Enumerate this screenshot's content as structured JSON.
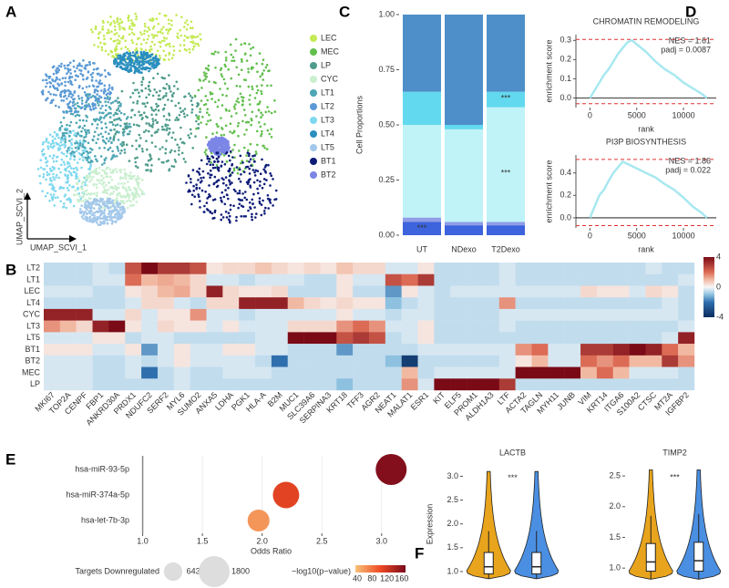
{
  "panel_labels": [
    "A",
    "B",
    "C",
    "D",
    "E",
    "F"
  ],
  "chart_data": [
    {
      "type": "umap",
      "xlabel": "UMAP_SCVI_1",
      "ylabel": "UMAP_SCVI_2",
      "series": [
        {
          "name": "LEC",
          "color": "#c5ea55"
        },
        {
          "name": "MEC",
          "color": "#62bf4e"
        },
        {
          "name": "LP",
          "color": "#4f9c8c"
        },
        {
          "name": "CYC",
          "color": "#c9efcf"
        },
        {
          "name": "LT1",
          "color": "#4fa6b4"
        },
        {
          "name": "LT2",
          "color": "#5b9ad6"
        },
        {
          "name": "LT3",
          "color": "#7fd8ef"
        },
        {
          "name": "LT4",
          "color": "#2a8fbf"
        },
        {
          "name": "LT5",
          "color": "#a3c8ea"
        },
        {
          "name": "BT1",
          "color": "#0e1c78"
        },
        {
          "name": "BT2",
          "color": "#7b86e6"
        }
      ]
    },
    {
      "type": "bar",
      "stacked": true,
      "ylabel": "Cell Proportions",
      "categories": [
        "UT",
        "NDexo",
        "T2Dexo"
      ],
      "series": [
        {
          "color": "#3d63dd",
          "values": [
            0.06,
            0.045,
            0.045
          ]
        },
        {
          "color": "#8f9ce6",
          "values": [
            0.02,
            0.015,
            0.015
          ]
        },
        {
          "color": "#bff3f7",
          "values": [
            0.42,
            0.42,
            0.52
          ]
        },
        {
          "color": "#62d9ee",
          "values": [
            0.15,
            0.02,
            0.07
          ]
        },
        {
          "color": "#4e8fca",
          "values": [
            0.35,
            0.5,
            0.35
          ]
        }
      ],
      "ylim": [
        0,
        1
      ],
      "yticks": [
        {
          "value": 0,
          "label": "0.00"
        },
        {
          "value": 0.25,
          "label": "0.25"
        },
        {
          "value": 0.5,
          "label": "0.50"
        },
        {
          "value": 0.75,
          "label": "0.75"
        },
        {
          "value": 1,
          "label": "1.00"
        }
      ],
      "annotations": [
        {
          "text": "***",
          "color": "#e02424"
        },
        {
          "text": "***",
          "color": "#e02424"
        },
        {
          "text": "***",
          "color": "#2540d8"
        }
      ]
    },
    {
      "type": "line",
      "title": "CHROMATIN REMODELING",
      "xlabel": "rank",
      "ylabel": "enrichment score",
      "color": "#a8e8f0",
      "x": [
        0,
        500,
        1000,
        1500,
        2000,
        2500,
        3000,
        3500,
        4000,
        4500,
        5000,
        6000,
        7000,
        8000,
        9000,
        10000,
        11000,
        12000,
        12500
      ],
      "y": [
        0,
        0.04,
        0.08,
        0.12,
        0.15,
        0.19,
        0.23,
        0.26,
        0.29,
        0.3,
        0.28,
        0.24,
        0.19,
        0.15,
        0.12,
        0.08,
        0.05,
        0.02,
        0
      ],
      "xlim": [
        -1500,
        13500
      ],
      "xticks": [
        0,
        5000,
        10000
      ],
      "ylim": [
        -0.05,
        0.33
      ],
      "yticks": [
        {
          "value": 0,
          "label": "0.0"
        },
        0.1,
        0.2,
        0.3
      ],
      "ref_lines": [
        0.305,
        -0.03
      ],
      "annotations": [
        "NES = 1.61",
        "padj = 0.0087"
      ]
    },
    {
      "type": "line",
      "title": "PI3P BIOSYNTHESIS",
      "xlabel": "rank",
      "ylabel": "enrichment score",
      "color": "#a8e8f0",
      "x": [
        0,
        500,
        1000,
        1500,
        2000,
        2500,
        3000,
        3500,
        4000,
        4500,
        5000,
        6000,
        7000,
        8000,
        9000,
        10000,
        11000,
        12000,
        12500
      ],
      "y": [
        0,
        0.1,
        0.2,
        0.25,
        0.33,
        0.4,
        0.45,
        0.5,
        0.48,
        0.46,
        0.44,
        0.4,
        0.36,
        0.3,
        0.25,
        0.18,
        0.1,
        0.04,
        0
      ],
      "xlim": [
        -1500,
        13500
      ],
      "xticks": [
        0,
        5000,
        10000
      ],
      "ylim": [
        -0.09,
        0.56
      ],
      "yticks": [
        {
          "value": 0,
          "label": "0.0"
        },
        0.2,
        0.4
      ],
      "ref_lines": [
        0.52,
        -0.07
      ],
      "annotations": [
        "NES = 1.86",
        "padj = 0.022"
      ]
    },
    {
      "type": "heatmap",
      "rows": [
        "LT2",
        "LT1",
        "LEC",
        "LT4",
        "CYC",
        "LT3",
        "LT5",
        "BT1",
        "BT2",
        "MEC",
        "LP"
      ],
      "columns": [
        "MKI67",
        "TOP2A",
        "CENPF",
        "FBP1",
        "ANKRD30A",
        "PRDX1",
        "NDUFC2",
        "SERF2",
        "MYL6",
        "SUMO2",
        "ANXA5",
        "LDHA",
        "PGK1",
        "HLA-A",
        "B2M",
        "MUC1",
        "SLC39A6",
        "SERPINA3",
        "KRT18",
        "TFF3",
        "AGR2",
        "NEAT1",
        "MALAT1",
        "ESR1",
        "KIT",
        "ELF5",
        "PROM1",
        "ALDH1A3",
        "LTF",
        "ACTA2",
        "TAGLN",
        "MYH11",
        "JUNB",
        "VIM",
        "KRT14",
        "ITGA6",
        "S100A2",
        "CTSC",
        "MT2A",
        "IGFBP2"
      ],
      "values": [
        [
          -0.5,
          -0.5,
          -0.5,
          -0.3,
          -0.5,
          2.5,
          4,
          3,
          3,
          2.5,
          0.3,
          0.5,
          0.5,
          0.8,
          0.5,
          0.3,
          0.5,
          0.3,
          0.8,
          0.5,
          0.5,
          -0.3,
          -0.3,
          0.3,
          -0.5,
          -0.5,
          -0.5,
          -0.5,
          -0.3,
          -0.5,
          -0.5,
          -0.5,
          -0.5,
          -0.5,
          -0.5,
          -0.5,
          -0.5,
          -0.3,
          -0.5,
          -0.5
        ],
        [
          -0.5,
          -0.5,
          -0.5,
          -0.3,
          -0.3,
          2,
          1,
          1.2,
          1,
          0.5,
          -0.3,
          -0.3,
          -0.5,
          -0.3,
          -0.3,
          -0.3,
          -0.5,
          -0.5,
          0.3,
          -0.3,
          -0.3,
          2.5,
          2,
          3,
          -0.5,
          -0.5,
          -0.5,
          -0.5,
          -0.3,
          -0.5,
          -0.5,
          -0.5,
          -0.5,
          -0.5,
          -0.5,
          -0.5,
          -0.5,
          -0.5,
          -0.5,
          -0.3
        ],
        [
          -0.3,
          -0.3,
          -0.3,
          -0.5,
          -0.5,
          0.3,
          0.5,
          1,
          1.2,
          0.5,
          3.5,
          0.5,
          0.3,
          0.3,
          0.5,
          -0.5,
          -0.5,
          -0.5,
          0.3,
          -0.5,
          -0.5,
          -1.5,
          0.3,
          -0.3,
          -0.5,
          -0.3,
          -0.3,
          -0.3,
          -0.3,
          -0.3,
          -0.3,
          -0.3,
          -0.3,
          0.5,
          0.3,
          0.3,
          -0.3,
          0.5,
          0.3,
          -0.5
        ],
        [
          -0.5,
          -0.5,
          -0.5,
          -0.5,
          -0.5,
          -0.3,
          0.5,
          0.5,
          -0.3,
          -0.5,
          0.5,
          0.5,
          3.5,
          3.5,
          3.5,
          1,
          0.5,
          0.3,
          0.5,
          0.3,
          0.3,
          -1,
          -0.5,
          -0.3,
          -0.5,
          -0.5,
          -0.5,
          -0.5,
          1.5,
          -0.5,
          -0.5,
          -0.5,
          -0.5,
          -0.5,
          -0.5,
          -0.5,
          -0.5,
          -0.5,
          -0.3,
          -0.5
        ],
        [
          3.5,
          3.5,
          3.5,
          -0.3,
          -0.3,
          0.5,
          -0.3,
          0.3,
          0.3,
          1.5,
          -0.3,
          -0.3,
          -0.5,
          -0.3,
          -0.3,
          -0.3,
          -0.3,
          -0.3,
          0.3,
          -0.3,
          -0.3,
          -0.5,
          -0.3,
          -0.3,
          -0.5,
          -0.5,
          -0.5,
          -0.5,
          -0.3,
          -0.3,
          -0.3,
          -0.3,
          -0.3,
          -0.3,
          -0.3,
          -0.3,
          -0.3,
          -0.3,
          -0.3,
          -0.5
        ],
        [
          1.5,
          1,
          0.5,
          3.5,
          4,
          0.3,
          -0.3,
          0.5,
          0.3,
          0.3,
          -0.3,
          0.3,
          -0.3,
          -0.3,
          -0.3,
          0.5,
          0.5,
          0.5,
          1.5,
          2,
          1.5,
          -0.3,
          -0.3,
          0.3,
          -0.5,
          -0.5,
          -0.5,
          -0.5,
          -0.3,
          -0.5,
          -0.5,
          -0.5,
          -0.5,
          -0.5,
          -0.5,
          -0.5,
          -0.5,
          -0.5,
          -0.5,
          -0.3
        ],
        [
          -0.3,
          -0.3,
          -0.3,
          0.3,
          0.3,
          -0.5,
          -0.3,
          -0.3,
          -0.5,
          -0.5,
          -0.5,
          -0.5,
          -0.5,
          -0.3,
          -0.3,
          4,
          4,
          4,
          2.5,
          3,
          2.5,
          -0.5,
          -0.3,
          0.3,
          -0.5,
          -0.5,
          -0.5,
          -0.5,
          -0.5,
          -0.5,
          -0.5,
          -0.5,
          -0.5,
          -0.5,
          -0.5,
          -0.5,
          -0.5,
          -0.5,
          -0.3,
          3.5
        ],
        [
          0.3,
          0.3,
          0.3,
          -0.3,
          -0.3,
          0.3,
          -1.5,
          -0.3,
          0.3,
          -0.3,
          -0.3,
          0.3,
          0.3,
          -0.3,
          -0.3,
          -0.5,
          -0.5,
          -0.5,
          -1.5,
          -0.5,
          -0.5,
          -0.5,
          -0.5,
          -0.3,
          -0.3,
          -0.3,
          -0.3,
          -0.3,
          -0.3,
          1.5,
          2,
          -0.3,
          -0.3,
          3,
          3,
          3.5,
          4,
          3.5,
          2,
          1
        ],
        [
          -0.3,
          -0.3,
          -0.3,
          -0.5,
          -0.5,
          -0.3,
          -0.5,
          -0.3,
          0.3,
          -0.3,
          -0.3,
          -0.3,
          -0.3,
          -0.5,
          -2,
          -0.5,
          -0.5,
          -0.5,
          -0.5,
          -0.5,
          -0.5,
          -1,
          -3.5,
          -0.5,
          -0.5,
          -0.5,
          -0.5,
          -0.5,
          -0.3,
          0.3,
          1,
          -0.3,
          -0.3,
          2,
          1.5,
          2,
          1,
          1,
          3,
          1.5
        ],
        [
          -0.3,
          -0.3,
          -0.3,
          -0.5,
          -0.5,
          -0.3,
          -2,
          -0.5,
          -0.3,
          -0.5,
          -0.5,
          -0.3,
          -0.3,
          -0.3,
          -0.5,
          -0.5,
          -0.5,
          -0.5,
          -0.5,
          -0.5,
          -0.5,
          -0.5,
          1,
          -0.5,
          -0.3,
          -0.3,
          -0.3,
          -0.3,
          -0.3,
          4,
          4,
          4,
          4,
          1,
          2,
          1,
          -0.3,
          -0.3,
          -0.3,
          -0.5
        ],
        [
          -0.3,
          -0.3,
          -0.3,
          -0.5,
          -0.5,
          -0.5,
          -0.5,
          -0.5,
          -0.3,
          -0.5,
          -0.5,
          -0.5,
          -0.5,
          -0.5,
          -0.5,
          -0.5,
          -0.5,
          -0.5,
          -1,
          -0.5,
          -0.5,
          -0.5,
          1.5,
          -0.3,
          4,
          4,
          4,
          4,
          3,
          -0.5,
          -0.5,
          -0.5,
          -0.5,
          -0.5,
          -0.5,
          -0.5,
          -0.5,
          -0.5,
          -0.5,
          -0.5
        ]
      ],
      "colorlim": [
        -4,
        4
      ],
      "colorbar_ticks": [
        4,
        0,
        -4
      ]
    },
    {
      "type": "bubble",
      "xlabel": "Odds Ratio",
      "categories": [
        "hsa-miR-93-5p",
        "hsa-miR-374a-5p",
        "hsa-let-7b-3p"
      ],
      "x": [
        3.08,
        2.2,
        1.97
      ],
      "sizes": [
        1800,
        1300,
        900
      ],
      "color_values": [
        165,
        110,
        60
      ],
      "xlim": [
        0.95,
        3.2
      ],
      "xticks": [
        {
          "value": 1,
          "label": "1.0"
        },
        1.5,
        {
          "value": 2,
          "label": "2.0"
        },
        2.5,
        {
          "value": 3,
          "label": "3.0"
        }
      ],
      "ref_x": 1,
      "size_legend": {
        "title": "Targets Downregulated",
        "values": [
          643,
          1800
        ]
      },
      "colorbar_title": "−log10(p−value)",
      "colorlim": [
        35,
        170
      ],
      "colorbar_ticks": [
        40,
        80,
        120,
        160
      ]
    },
    {
      "type": "violin",
      "title": "LACTB",
      "ylabel": "Expression",
      "annotation": "***",
      "ylim": [
        0.75,
        3.2
      ],
      "yticks": [
        {
          "value": 1,
          "label": "1.0"
        },
        1.5,
        {
          "value": 2,
          "label": "2.0"
        },
        2.5,
        {
          "value": 3,
          "label": "3.0"
        }
      ],
      "groups": [
        {
          "color": "#e8a41c",
          "low": 0.85,
          "q1": 0.95,
          "median": 1.1,
          "q3": 1.4,
          "high": 1.85,
          "max": 3.1
        },
        {
          "color": "#4a8fe2",
          "low": 0.85,
          "q1": 0.95,
          "median": 1.1,
          "q3": 1.4,
          "high": 1.85,
          "max": 3.1
        }
      ]
    },
    {
      "type": "violin",
      "title": "TIMP2",
      "annotation": "***",
      "ylim": [
        0.75,
        2.65
      ],
      "yticks": [
        {
          "value": 1,
          "label": "1.0"
        },
        1.5,
        {
          "value": 2,
          "label": "2.0"
        },
        2.5
      ],
      "groups": [
        {
          "color": "#e8a41c",
          "low": 0.82,
          "q1": 0.95,
          "median": 1.1,
          "q3": 1.4,
          "high": 1.85,
          "max": 2.6
        },
        {
          "color": "#4a8fe2",
          "low": 0.82,
          "q1": 0.95,
          "median": 1.12,
          "q3": 1.42,
          "high": 1.88,
          "max": 2.6
        }
      ]
    }
  ]
}
